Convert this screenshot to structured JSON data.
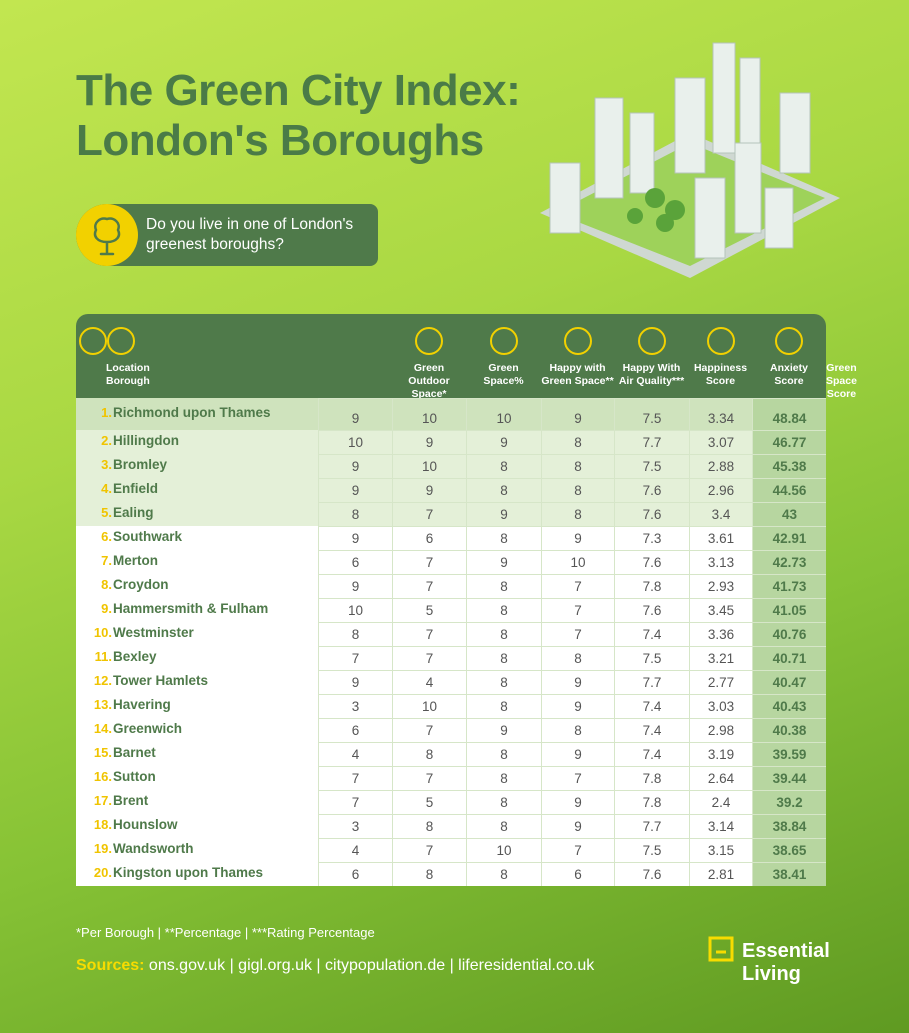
{
  "header": {
    "title_line1": "The Green City Index:",
    "title_line2": "London's Boroughs",
    "callout": "Do you live in one of London's\ngreenest boroughs?"
  },
  "table": {
    "columns": [
      "Location\nBorough",
      "Green Outdoor\nSpace*",
      "Green\nSpace%",
      "Happy with\nGreen Space**",
      "Happy With\nAir Quality***",
      "Happiness\nScore",
      "Anxiety\nScore",
      "Green\nSpace Score"
    ],
    "rows": [
      [
        "1.",
        "Richmond upon Thames",
        9,
        10,
        10,
        9,
        7.5,
        3.34,
        48.84
      ],
      [
        "2.",
        "Hillingdon",
        10,
        9,
        9,
        8,
        7.7,
        3.07,
        46.77
      ],
      [
        "3.",
        "Bromley",
        9,
        10,
        8,
        8,
        7.5,
        2.88,
        45.38
      ],
      [
        "4.",
        "Enfield",
        9,
        9,
        8,
        8,
        7.6,
        2.96,
        44.56
      ],
      [
        "5.",
        "Ealing",
        8,
        7,
        9,
        8,
        7.6,
        3.4,
        43
      ],
      [
        "6.",
        "Southwark",
        9,
        6,
        8,
        9,
        7.3,
        3.61,
        42.91
      ],
      [
        "7.",
        "Merton",
        6,
        7,
        9,
        10,
        7.6,
        3.13,
        42.73
      ],
      [
        "8.",
        "Croydon",
        9,
        7,
        8,
        7,
        7.8,
        2.93,
        41.73
      ],
      [
        "9.",
        "Hammersmith & Fulham",
        10,
        5,
        8,
        7,
        7.6,
        3.45,
        41.05
      ],
      [
        "10.",
        "Westminster",
        8,
        7,
        8,
        7,
        7.4,
        3.36,
        40.76
      ],
      [
        "11.",
        "Bexley",
        7,
        7,
        8,
        8,
        7.5,
        3.21,
        40.71
      ],
      [
        "12.",
        "Tower Hamlets",
        9,
        4,
        8,
        9,
        7.7,
        2.77,
        40.47
      ],
      [
        "13.",
        "Havering",
        3,
        10,
        8,
        9,
        7.4,
        3.03,
        40.43
      ],
      [
        "14.",
        "Greenwich",
        6,
        7,
        9,
        8,
        7.4,
        2.98,
        40.38
      ],
      [
        "15.",
        "Barnet",
        4,
        8,
        8,
        9,
        7.4,
        3.19,
        39.59
      ],
      [
        "16.",
        "Sutton",
        7,
        7,
        8,
        7,
        7.8,
        2.64,
        39.44
      ],
      [
        "17.",
        "Brent",
        7,
        5,
        8,
        9,
        7.8,
        2.4,
        39.2
      ],
      [
        "18.",
        "Hounslow",
        3,
        8,
        8,
        9,
        7.7,
        3.14,
        38.84
      ],
      [
        "19.",
        "Wandsworth",
        4,
        7,
        10,
        7,
        7.5,
        3.15,
        38.65
      ],
      [
        "20.",
        "Kingston upon Thames",
        6,
        8,
        8,
        6,
        7.6,
        2.81,
        38.41
      ]
    ]
  },
  "footer": {
    "note": "*Per Borough | **Percentage | ***Rating Percentage",
    "sources_label": "Sources:",
    "sources": "ons.gov.uk | gigl.org.uk | citypopulation.de | liferesidential.co.uk",
    "logo_line1": "Essential",
    "logo_line2": "Living"
  }
}
